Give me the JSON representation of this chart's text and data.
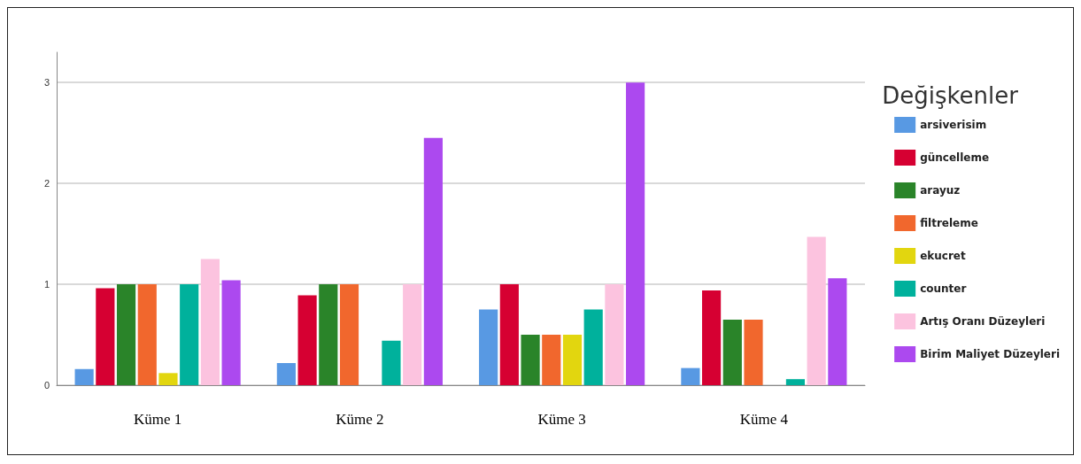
{
  "chart_data": {
    "type": "bar",
    "legend_title": "Değişkenler",
    "categories": [
      "Küme 1",
      "Küme 2",
      "Küme 3",
      "Küme 4"
    ],
    "series": [
      {
        "name": "arsiverisim",
        "color": "#5899e3",
        "values": [
          0.16,
          0.22,
          0.75,
          0.17
        ]
      },
      {
        "name": "güncelleme",
        "color": "#d60032",
        "values": [
          0.96,
          0.89,
          1,
          0.94
        ]
      },
      {
        "name": "arayuz",
        "color": "#2a8429",
        "values": [
          1,
          1,
          0.5,
          0.65
        ]
      },
      {
        "name": "filtreleme",
        "color": "#f1672d",
        "values": [
          1,
          1,
          0.5,
          0.65
        ]
      },
      {
        "name": "ekucret",
        "color": "#e2d60f",
        "values": [
          0.12,
          null,
          0.5,
          null
        ]
      },
      {
        "name": "counter",
        "color": "#00b19c",
        "values": [
          1,
          0.44,
          0.75,
          0.06
        ]
      },
      {
        "name": "Artış Oranı Düzeyleri",
        "color": "#fcc3df",
        "values": [
          1.25,
          1,
          1,
          1.47
        ]
      },
      {
        "name": "Birim Maliyet Düzeyleri",
        "color": "#ac49ef",
        "values": [
          1.04,
          2.45,
          3,
          1.06
        ]
      }
    ],
    "ylim": [
      0,
      3.3
    ],
    "yticks": [
      0,
      1,
      2,
      3
    ],
    "grid": "y",
    "legend": "right"
  }
}
